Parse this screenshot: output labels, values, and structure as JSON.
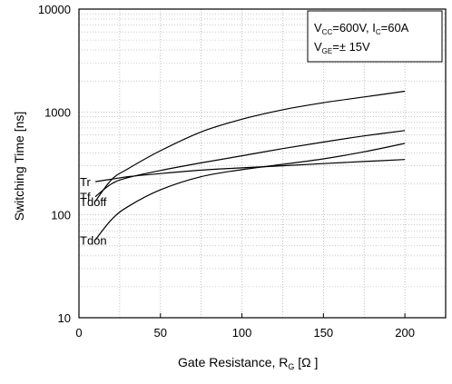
{
  "chart_data": {
    "type": "line",
    "xlabel": "Gate Resistance, R",
    "xlabel_sub": "G",
    "xlabel_unit": " [Ω ]",
    "ylabel": "Switching Time [ns]",
    "xlim": [
      0,
      225
    ],
    "ylim": [
      10,
      10000
    ],
    "yscale": "log",
    "grid": true,
    "x_ticks": [
      0,
      50,
      100,
      150,
      200
    ],
    "x_tick_labels": [
      "0",
      "50",
      "100",
      "150",
      "200"
    ],
    "y_ticks": [
      10,
      100,
      1000,
      10000
    ],
    "y_tick_labels": [
      "10",
      "100",
      "1000",
      "10000"
    ],
    "legend_box": {
      "placement": "top-right",
      "line1": {
        "a": "V",
        "a_sub": "CC",
        "b": "=600V, I",
        "b_sub": "C",
        "c": "=60A"
      },
      "line2": {
        "a": "V",
        "a_sub": "GE",
        "b": "=± 15V"
      }
    },
    "series": [
      {
        "name": "Tr",
        "x": [
          10,
          20,
          30,
          50,
          75,
          100,
          125,
          150,
          175,
          200
        ],
        "values": [
          210,
          222,
          235,
          252,
          272,
          286,
          300,
          315,
          330,
          345
        ]
      },
      {
        "name": "Tf",
        "x": [
          10,
          20,
          30,
          50,
          75,
          100,
          125,
          150,
          175,
          200
        ],
        "values": [
          150,
          200,
          230,
          270,
          320,
          375,
          440,
          510,
          585,
          660
        ]
      },
      {
        "name": "Tdoff",
        "x": [
          10,
          20,
          30,
          50,
          75,
          100,
          125,
          150,
          175,
          200
        ],
        "values": [
          135,
          220,
          280,
          420,
          640,
          850,
          1050,
          1230,
          1400,
          1590
        ]
      },
      {
        "name": "Tdon",
        "x": [
          10,
          20,
          30,
          50,
          75,
          100,
          125,
          150,
          175,
          200
        ],
        "values": [
          57,
          90,
          120,
          175,
          235,
          275,
          310,
          350,
          410,
          495
        ]
      }
    ]
  }
}
